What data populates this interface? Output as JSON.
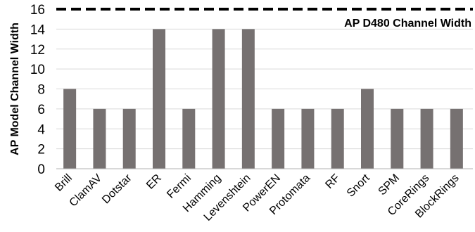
{
  "chart_data": {
    "type": "bar",
    "title": "",
    "xlabel": "",
    "ylabel": "AP Model Channel Width",
    "ylim": [
      0,
      16
    ],
    "yticks": [
      0,
      2,
      4,
      6,
      8,
      10,
      12,
      14,
      16
    ],
    "grid": true,
    "categories": [
      "Brill",
      "ClamAV",
      "Dotstar",
      "ER",
      "Fermi",
      "Hamming",
      "Levenshtein",
      "PowerEN",
      "Protomata",
      "RF",
      "Snort",
      "SPM",
      "CoreRings",
      "BlockRings"
    ],
    "values": [
      8,
      6,
      6,
      14,
      6,
      14,
      14,
      6,
      6,
      6,
      8,
      6,
      6,
      6
    ],
    "bar_color": "#767171",
    "reference_line": {
      "value": 16,
      "label": "AP D480 Channel Width",
      "style": "dashed",
      "color": "#000000"
    }
  }
}
